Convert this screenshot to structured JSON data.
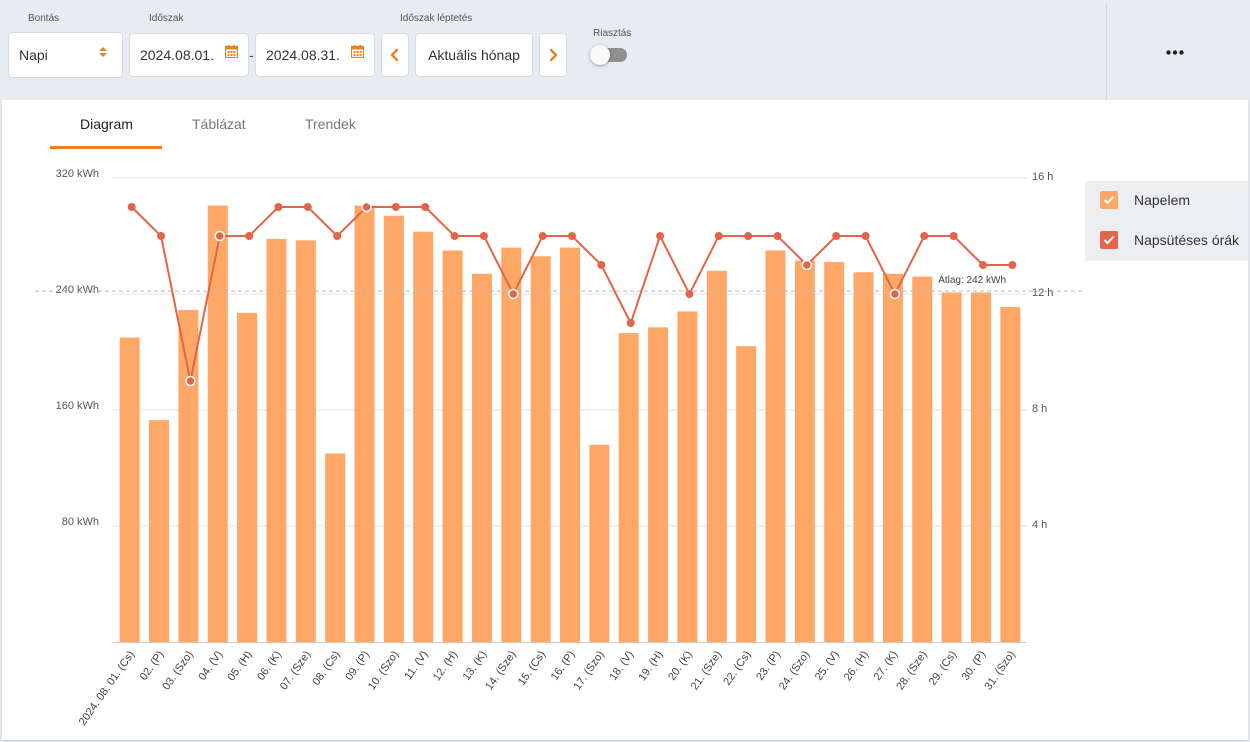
{
  "toolbar": {
    "bontas_label": "Bontás",
    "bontas_value": "Napi",
    "idoszak_label": "Időszak",
    "date_from": "2024.08.01.",
    "date_sep": "-",
    "date_to": "2024.08.31.",
    "leptetes_label": "Időszak léptetés",
    "current_period": "Aktuális hónap",
    "riasztas_label": "Riasztás"
  },
  "tabs": [
    "Diagram",
    "Táblázat",
    "Trendek"
  ],
  "legend": [
    "Napelem",
    "Napsütéses órák"
  ],
  "colors": {
    "bar": "#ffa766",
    "line": "#e2654a",
    "accent": "#e8821b"
  },
  "chart_data": {
    "type": "bar",
    "categories": [
      "2024. 08. 01. (Cs)",
      "02. (P)",
      "03. (Szo)",
      "04. (V)",
      "05. (H)",
      "06. (K)",
      "07. (Sze)",
      "08. (Cs)",
      "09. (P)",
      "10. (Szo)",
      "11. (V)",
      "12. (H)",
      "13. (K)",
      "14. (Sze)",
      "15. (Cs)",
      "16. (P)",
      "17. (Szo)",
      "18. (V)",
      "19. (H)",
      "20. (K)",
      "21. (Sze)",
      "22. (Cs)",
      "23. (P)",
      "24. (Szo)",
      "25. (V)",
      "26. (H)",
      "27. (K)",
      "28. (Sze)",
      "29. (Cs)",
      "30. (P)",
      "31. (Szo)"
    ],
    "series": [
      {
        "name": "Napelem",
        "axis": "left",
        "unit": "kWh",
        "values": [
          210,
          153,
          229,
          301,
          227,
          278,
          277,
          130,
          301,
          294,
          283,
          270,
          254,
          272,
          266,
          272,
          136,
          213,
          217,
          228,
          256,
          204,
          270,
          263,
          262,
          255,
          254,
          252,
          241,
          241,
          231
        ]
      },
      {
        "name": "Napsütéses órák",
        "axis": "right",
        "unit": "h",
        "values": [
          15,
          14,
          9,
          14,
          14,
          15,
          15,
          14,
          15,
          15,
          15,
          14,
          14,
          12,
          14,
          14,
          13,
          11,
          14,
          12,
          14,
          14,
          14,
          13,
          14,
          14,
          12,
          14,
          14,
          13,
          13
        ]
      }
    ],
    "left_axis": {
      "ticks": [
        "80 kWh",
        "160 kWh",
        "240 kWh",
        "320 kWh"
      ],
      "tick_values": [
        80,
        160,
        240,
        320
      ],
      "ylim": [
        0,
        320
      ]
    },
    "right_axis": {
      "ticks": [
        "4 h",
        "8 h",
        "12 h",
        "16 h"
      ],
      "tick_values": [
        4,
        8,
        12,
        16
      ],
      "ylim": [
        0,
        16
      ]
    },
    "average": {
      "value": 242,
      "label": "Átlag: 242 kWh"
    }
  }
}
